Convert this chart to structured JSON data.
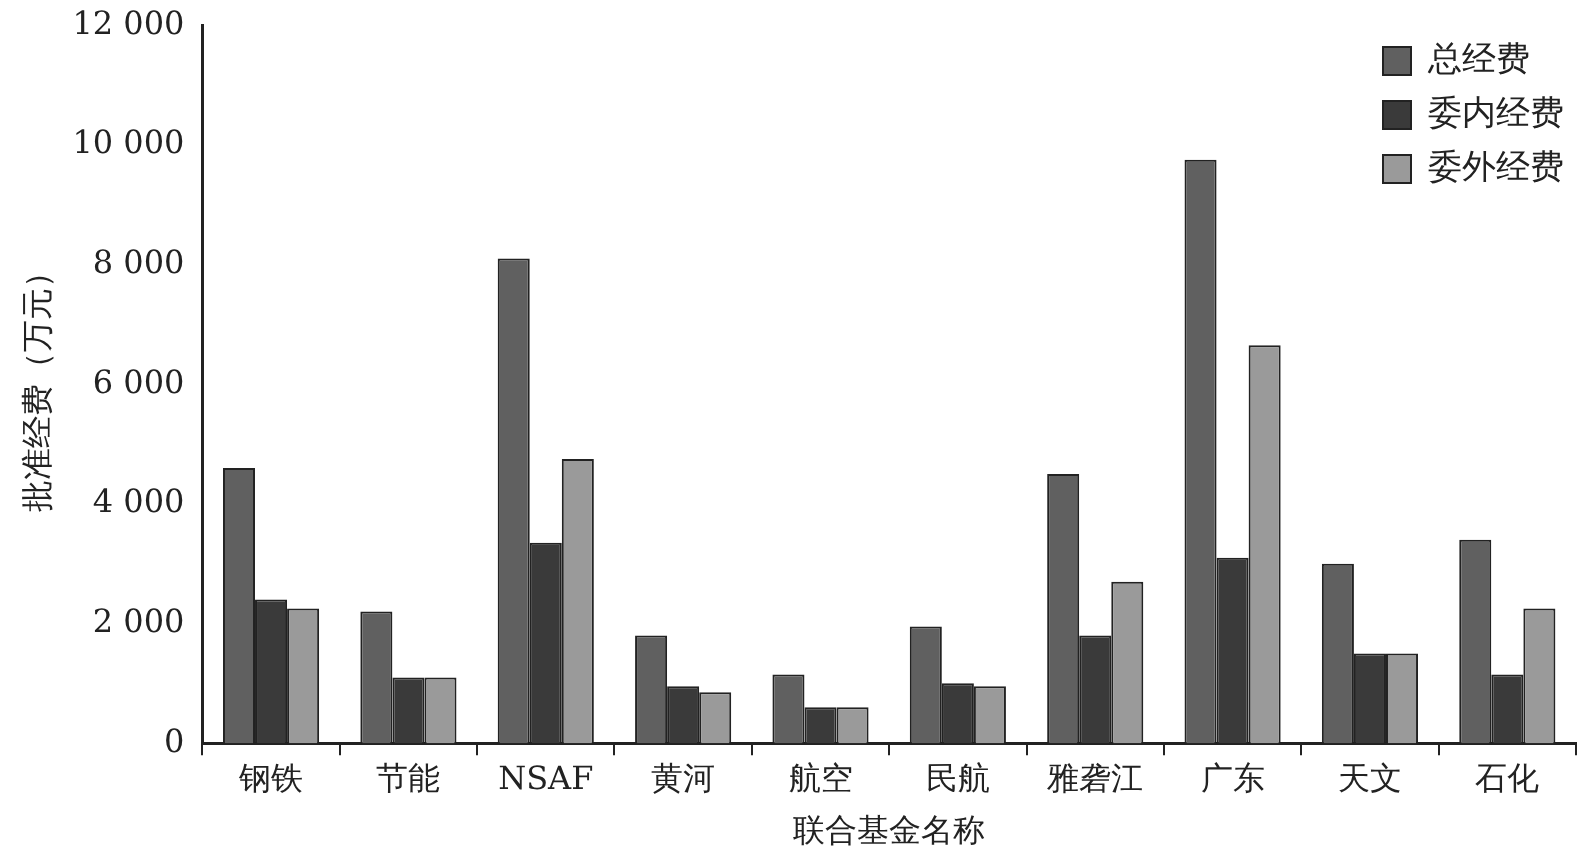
{
  "chart_data": {
    "type": "bar",
    "xlabel": "联合基金名称",
    "ylabel": "批准经费（万元）",
    "categories": [
      "钢铁",
      "节能",
      "NSAF",
      "黄河",
      "航空",
      "民航",
      "雅砻江",
      "广东",
      "天文",
      "石化"
    ],
    "series": [
      {
        "name": "总经费",
        "color": "#606060",
        "values": [
          4600,
          2200,
          8100,
          1800,
          1150,
          1950,
          4500,
          9750,
          3000,
          3400
        ]
      },
      {
        "name": "委内经费",
        "color": "#3a3a3a",
        "values": [
          2400,
          1100,
          3350,
          950,
          600,
          1000,
          1800,
          3100,
          1500,
          1150
        ]
      },
      {
        "name": "委外经费",
        "color": "#9a9a9a",
        "values": [
          2250,
          1100,
          4750,
          850,
          600,
          950,
          2700,
          6650,
          1500,
          2250
        ]
      }
    ],
    "ylim": [
      0,
      12000
    ],
    "yticks": [
      0,
      {
        "value": 2000,
        "label": "2 000"
      },
      {
        "value": 4000,
        "label": "4 000"
      },
      {
        "value": 6000,
        "label": "6 000"
      },
      {
        "value": 8000,
        "label": "8 000"
      },
      {
        "value": 10000,
        "label": "10 000"
      },
      {
        "value": 12000,
        "label": "12 000"
      }
    ],
    "grid": false,
    "legend": "top right"
  }
}
